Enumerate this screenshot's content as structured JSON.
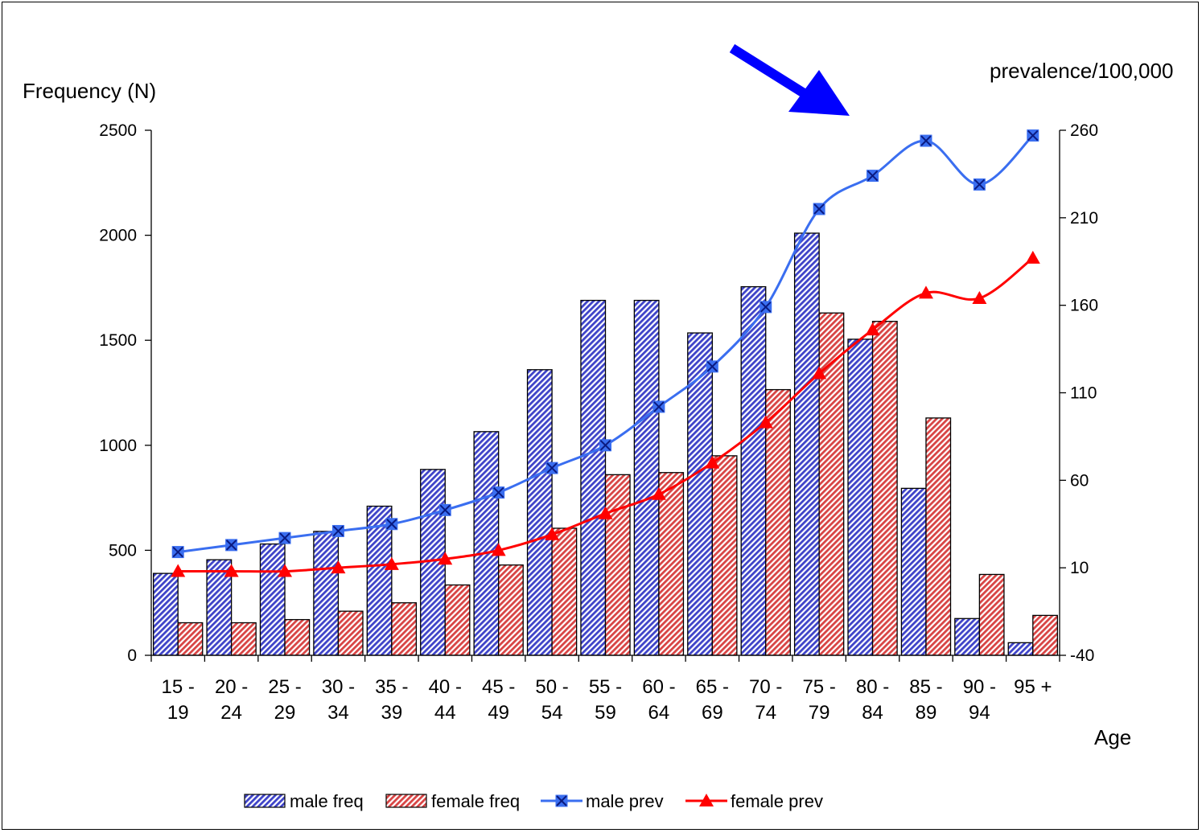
{
  "chart_data": {
    "type": "bar",
    "xlabel": "Age",
    "ylabel": "Frequency (N)",
    "y2label": "prevalence/100,000",
    "ylim": [
      0,
      2500
    ],
    "yticks": [
      0,
      500,
      1000,
      1500,
      2000,
      2500
    ],
    "y2lim": [
      -40,
      260
    ],
    "y2ticks": [
      -40,
      10,
      60,
      110,
      160,
      210,
      260
    ],
    "grid": false,
    "legend_position": "bottom",
    "categories": [
      {
        "top": "15  -",
        "bottom": "19"
      },
      {
        "top": "20  -",
        "bottom": "24"
      },
      {
        "top": "25  -",
        "bottom": "29"
      },
      {
        "top": "30  -",
        "bottom": "34"
      },
      {
        "top": "35  -",
        "bottom": "39"
      },
      {
        "top": "40  -",
        "bottom": "44"
      },
      {
        "top": "45  -",
        "bottom": "49"
      },
      {
        "top": "50  -",
        "bottom": "54"
      },
      {
        "top": "55  -",
        "bottom": "59"
      },
      {
        "top": "60  -",
        "bottom": "64"
      },
      {
        "top": "65  -",
        "bottom": "69"
      },
      {
        "top": "70  -",
        "bottom": "74"
      },
      {
        "top": "75  -",
        "bottom": "79"
      },
      {
        "top": "80  -",
        "bottom": "84"
      },
      {
        "top": "85  -",
        "bottom": "89"
      },
      {
        "top": "90  -",
        "bottom": "94"
      },
      {
        "top": "95  +",
        "bottom": ""
      }
    ],
    "series": [
      {
        "name": "male freq",
        "kind": "bar",
        "axis": "left",
        "color": "#4a4fd0",
        "values": [
          390,
          455,
          530,
          590,
          710,
          885,
          1065,
          1360,
          1690,
          1690,
          1535,
          1755,
          2010,
          1505,
          795,
          175,
          60
        ]
      },
      {
        "name": "female freq",
        "kind": "bar",
        "axis": "left",
        "color": "#e06a6a",
        "values": [
          155,
          155,
          170,
          210,
          250,
          335,
          430,
          605,
          860,
          870,
          950,
          1265,
          1630,
          1590,
          1130,
          385,
          190
        ]
      },
      {
        "name": "male prev",
        "kind": "line",
        "axis": "right",
        "color": "#3a6ef0",
        "marker": "x-square",
        "values": [
          19,
          23,
          27,
          31,
          35,
          43,
          53,
          67,
          80,
          102,
          125,
          159,
          215,
          234,
          254,
          229,
          257
        ]
      },
      {
        "name": "female prev",
        "kind": "line",
        "axis": "right",
        "color": "#ff0000",
        "marker": "triangle",
        "values": [
          8,
          8,
          8,
          10,
          12,
          15,
          20,
          29,
          41,
          52,
          70,
          93,
          121,
          146,
          167,
          164,
          187
        ]
      }
    ]
  },
  "annotation": {
    "arrow_color": "#0000ff"
  }
}
